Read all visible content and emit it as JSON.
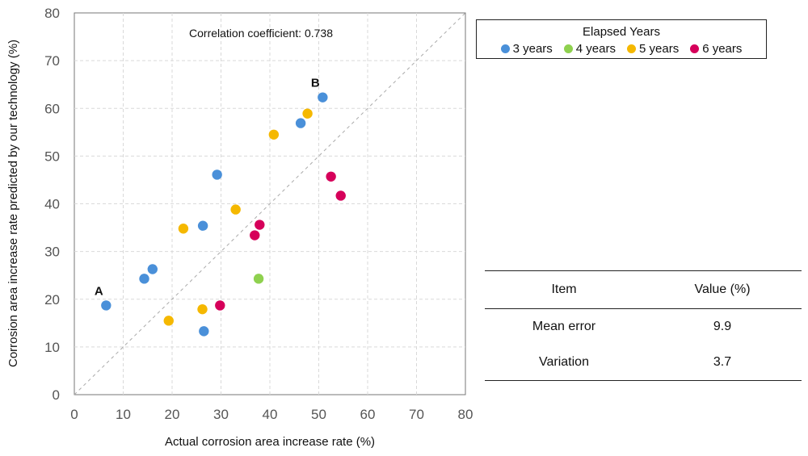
{
  "chart_data": {
    "type": "scatter",
    "title": "",
    "annotation": "Correlation coefficient: 0.738",
    "xlabel": "Actual corrosion area increase rate (%)",
    "ylabel": "Corrosion area increase rate predicted by our technology (%)",
    "xlim": [
      0,
      80
    ],
    "ylim": [
      0,
      80
    ],
    "xticks": [
      0,
      10,
      20,
      30,
      40,
      50,
      60,
      70,
      80
    ],
    "yticks": [
      0,
      10,
      20,
      30,
      40,
      50,
      60,
      70,
      80
    ],
    "grid": true,
    "reference_line": "y = x (dashed)",
    "legend_title": "Elapsed Years",
    "series": [
      {
        "name": "3 years",
        "color": "#4a90d9",
        "points": [
          [
            6.5,
            18.7
          ],
          [
            14.3,
            24.3
          ],
          [
            16.0,
            26.3
          ],
          [
            26.3,
            35.4
          ],
          [
            26.5,
            13.3
          ],
          [
            29.2,
            46.1
          ],
          [
            46.3,
            56.9
          ],
          [
            50.8,
            62.3
          ]
        ]
      },
      {
        "name": "4 years",
        "color": "#8fd14f",
        "points": [
          [
            37.7,
            24.3
          ]
        ]
      },
      {
        "name": "5 years",
        "color": "#f5b800",
        "points": [
          [
            19.3,
            15.5
          ],
          [
            22.3,
            34.8
          ],
          [
            26.2,
            17.9
          ],
          [
            33.0,
            38.8
          ],
          [
            40.8,
            54.5
          ],
          [
            47.7,
            58.9
          ]
        ]
      },
      {
        "name": "6 years",
        "color": "#d6005a",
        "points": [
          [
            29.8,
            18.7
          ],
          [
            36.9,
            33.4
          ],
          [
            37.9,
            35.6
          ],
          [
            52.5,
            45.7
          ],
          [
            54.5,
            41.7
          ]
        ]
      }
    ],
    "point_labels": [
      {
        "text": "A",
        "x": 6.5,
        "y": 18.7
      },
      {
        "text": "B",
        "x": 50.8,
        "y": 62.3
      }
    ]
  },
  "table": {
    "headers": [
      "Item",
      "Value (%)"
    ],
    "rows": [
      [
        "Mean error",
        "9.9"
      ],
      [
        "Variation",
        "3.7"
      ]
    ]
  }
}
